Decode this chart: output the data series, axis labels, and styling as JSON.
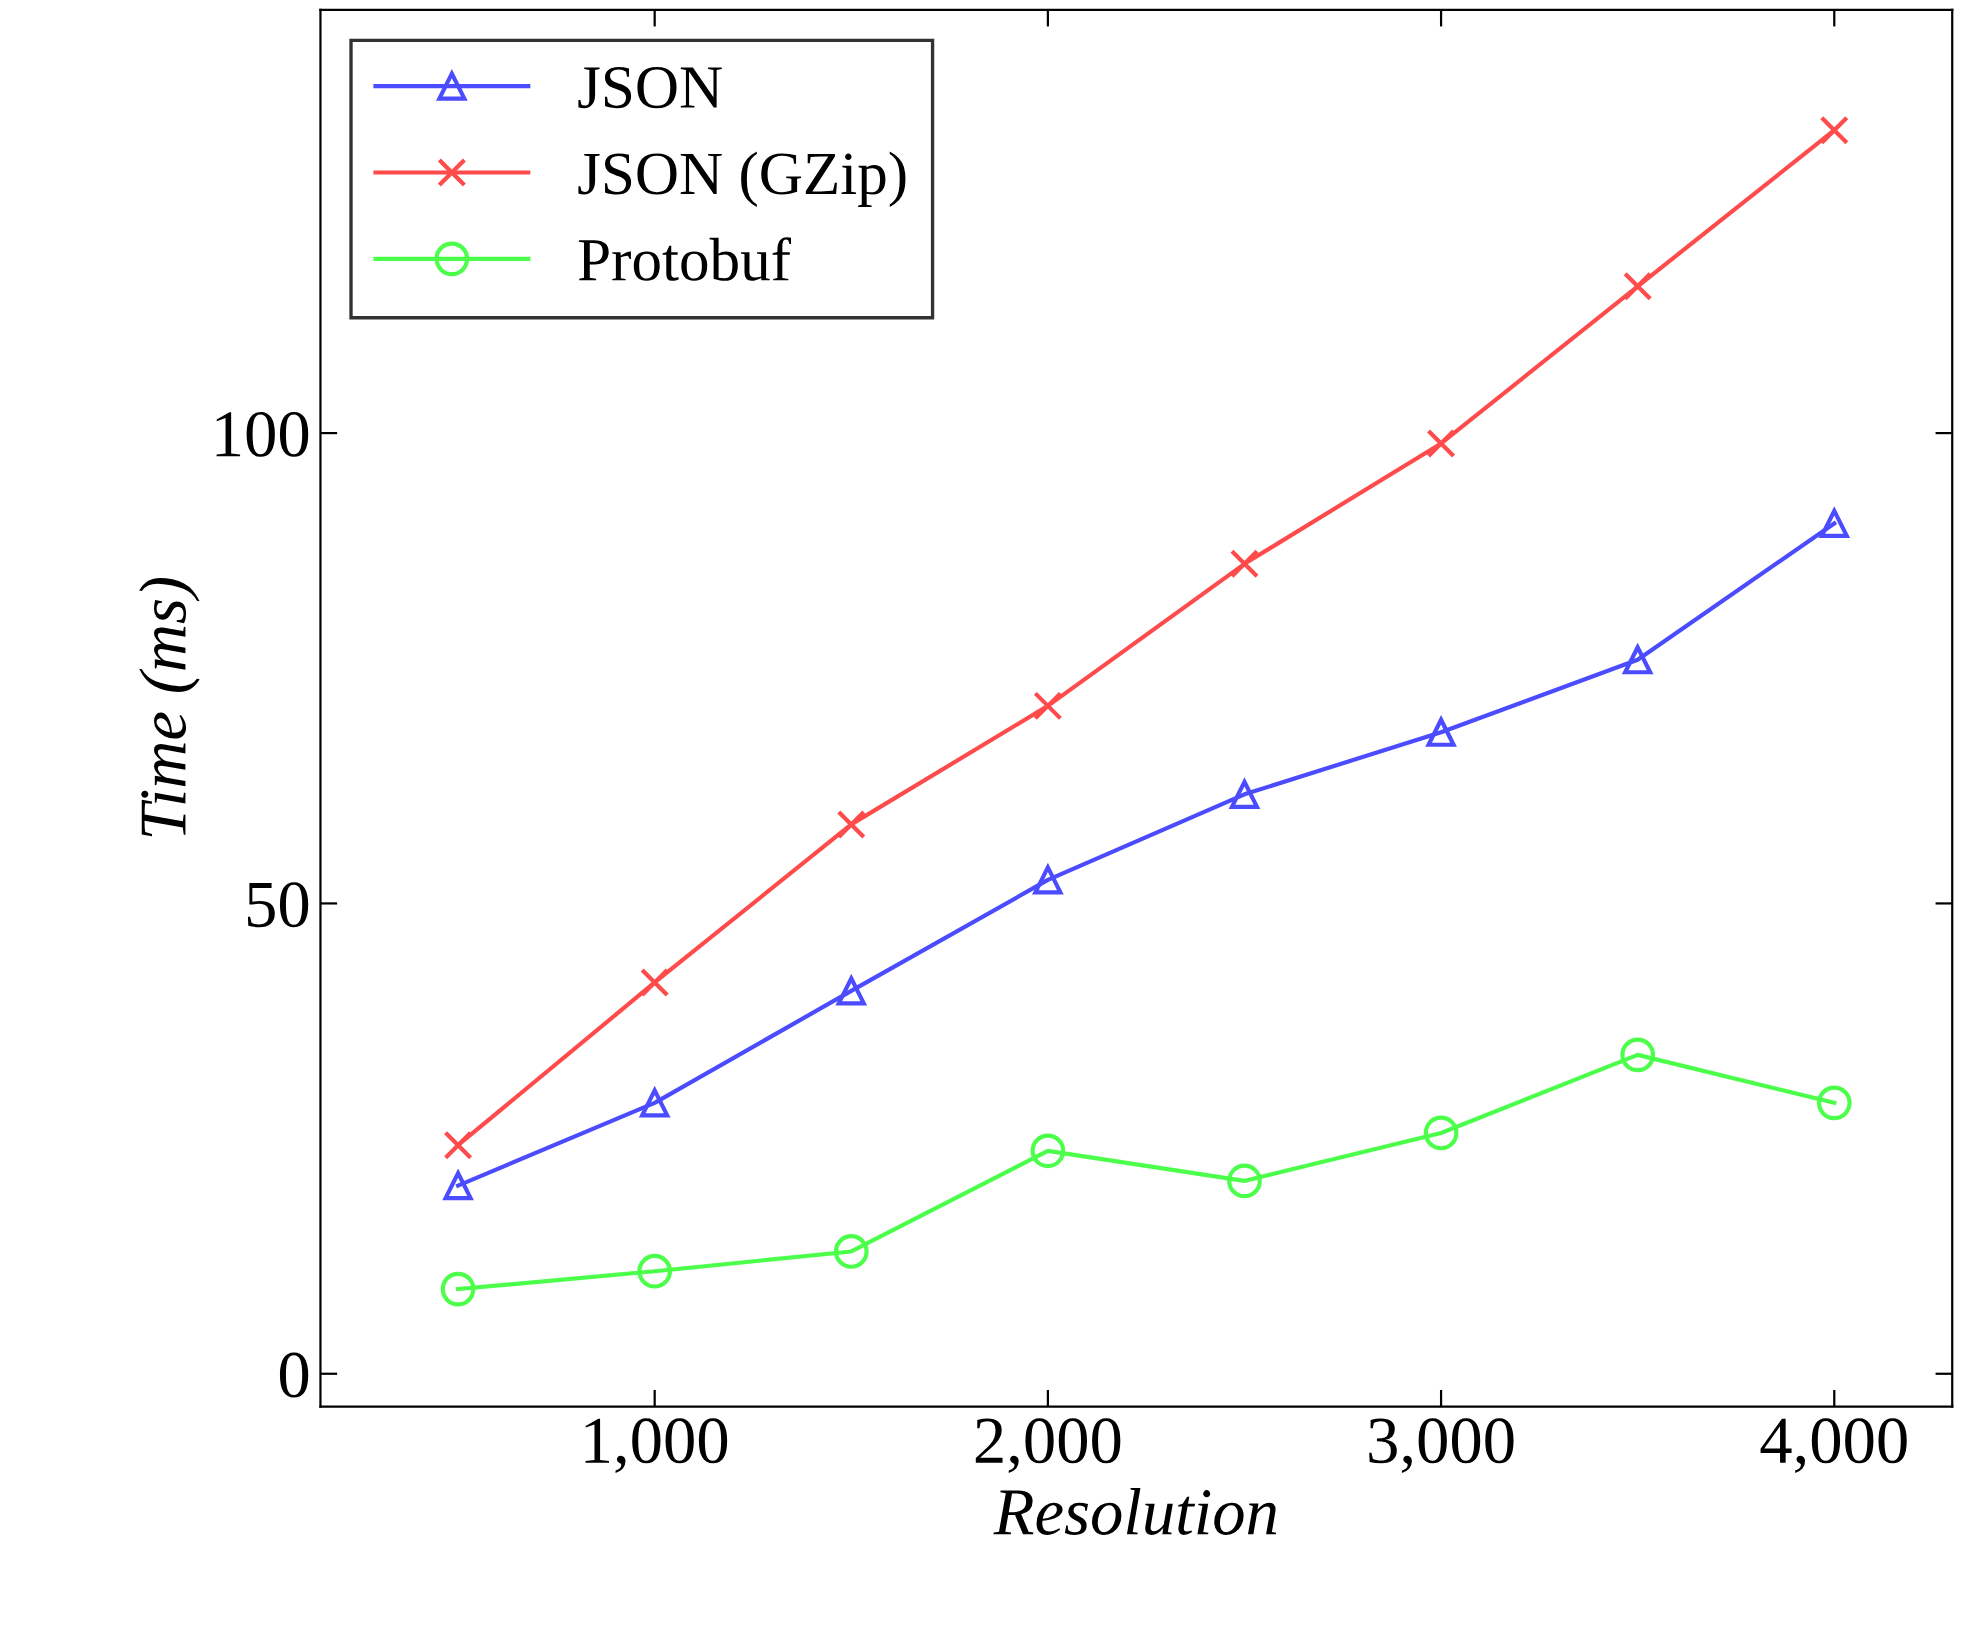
{
  "chart_data": {
    "type": "line",
    "xlabel": "Resolution",
    "ylabel": "Time (ms)",
    "x": [
      500,
      1000,
      1500,
      2000,
      2500,
      3000,
      3500,
      4000
    ],
    "series": [
      {
        "name": "JSON",
        "color": "#4b4bff",
        "marker": "triangle",
        "values": [
          20.0,
          28.8,
          40.7,
          52.5,
          61.6,
          68.2,
          75.9,
          90.4
        ]
      },
      {
        "name": "JSON (GZip)",
        "color": "#ff4b4b",
        "marker": "cross",
        "values": [
          24.3,
          41.6,
          58.4,
          71.0,
          86.1,
          98.9,
          115.6,
          132.2
        ]
      },
      {
        "name": "Protobuf",
        "color": "#4bff4b",
        "marker": "circle",
        "values": [
          9.0,
          10.9,
          13.0,
          23.7,
          20.5,
          25.6,
          33.9,
          28.8
        ]
      }
    ],
    "xlim": [
      150,
      4300
    ],
    "ylim": [
      -3.5,
      145
    ],
    "xticks": [
      {
        "value": 1000,
        "label": "1,000"
      },
      {
        "value": 2000,
        "label": "2,000"
      },
      {
        "value": 3000,
        "label": "3,000"
      },
      {
        "value": 4000,
        "label": "4,000"
      }
    ],
    "yticks": [
      0,
      50,
      100
    ],
    "legend": "top left",
    "grid": false,
    "line_style": "solid"
  }
}
